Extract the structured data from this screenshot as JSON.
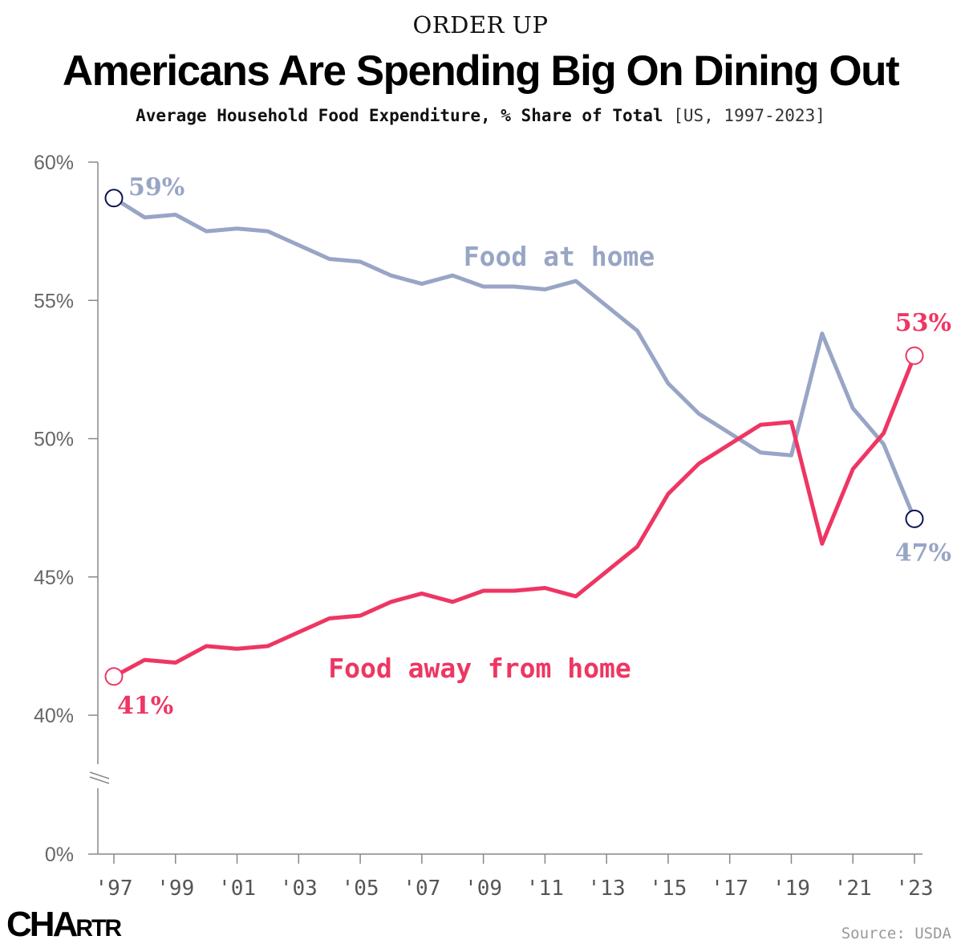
{
  "header": {
    "kicker": "ORDER UP",
    "title": "Americans Are Spending Big On Dining Out",
    "subtitle": "Average Household Food Expenditure, % Share of Total",
    "subtitle_range": "[US, 1997-2023]"
  },
  "footer": {
    "logo_big": "CH",
    "logo_mid": "A",
    "logo_small": "RTR",
    "source": "Source: USDA"
  },
  "colors": {
    "food_at_home": "#98A5C5",
    "food_away": "#EE3663",
    "axis": "#888888",
    "marker_outline": "#0B1551"
  },
  "chart_data": {
    "type": "line",
    "x": [
      1997,
      1998,
      1999,
      2000,
      2001,
      2002,
      2003,
      2004,
      2005,
      2006,
      2007,
      2008,
      2009,
      2010,
      2011,
      2012,
      2013,
      2014,
      2015,
      2016,
      2017,
      2018,
      2019,
      2020,
      2021,
      2022,
      2023
    ],
    "x_tick_labels": [
      "'97",
      "'99",
      "'01",
      "'03",
      "'05",
      "'07",
      "'09",
      "'11",
      "'13",
      "'15",
      "'17",
      "'19",
      "'21",
      "'23"
    ],
    "x_tick_values": [
      1997,
      1999,
      2001,
      2003,
      2005,
      2007,
      2009,
      2011,
      2013,
      2015,
      2017,
      2019,
      2021,
      2023
    ],
    "y_ticks": [
      {
        "value": 60,
        "label": "60%"
      },
      {
        "value": 55,
        "label": "55%"
      },
      {
        "value": 50,
        "label": "50%"
      },
      {
        "value": 45,
        "label": "45%"
      },
      {
        "value": 40,
        "label": "40%"
      },
      {
        "value": 0,
        "label": "0%"
      }
    ],
    "ylim": [
      40,
      60
    ],
    "y_axis_break": true,
    "series": [
      {
        "name": "Food at home",
        "color": "#98A5C5",
        "values": [
          58.7,
          58.0,
          58.1,
          57.5,
          57.6,
          57.5,
          57.0,
          56.5,
          56.4,
          55.9,
          55.6,
          55.9,
          55.5,
          55.5,
          55.4,
          55.7,
          54.8,
          53.9,
          52.0,
          50.9,
          50.2,
          49.5,
          49.4,
          53.8,
          51.1,
          49.8,
          47.1
        ],
        "start_label": "59%",
        "end_label": "47%"
      },
      {
        "name": "Food away from home",
        "color": "#EE3663",
        "values": [
          41.4,
          42.0,
          41.9,
          42.5,
          42.4,
          42.5,
          43.0,
          43.5,
          43.6,
          44.1,
          44.4,
          44.1,
          44.5,
          44.5,
          44.6,
          44.3,
          45.2,
          46.1,
          48.0,
          49.1,
          49.8,
          50.5,
          50.6,
          46.2,
          48.9,
          50.2,
          53.0
        ],
        "start_label": "41%",
        "end_label": "53%"
      }
    ]
  }
}
